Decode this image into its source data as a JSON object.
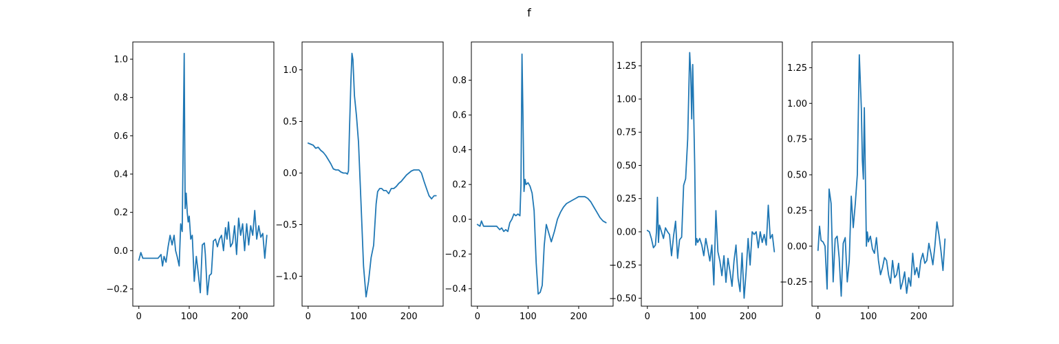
{
  "figure": {
    "suptitle": "f",
    "line_color": "#1f77b4"
  },
  "chart_data": [
    {
      "type": "line",
      "xlim": [
        -12,
        268
      ],
      "ylim": [
        -0.29,
        1.09
      ],
      "xticks": [
        0,
        100,
        200
      ],
      "yticks": [
        -0.2,
        0.0,
        0.2,
        0.4,
        0.6,
        0.8,
        1.0
      ],
      "x": [
        0,
        4,
        8,
        14,
        22,
        30,
        38,
        44,
        47,
        50,
        54,
        58,
        62,
        66,
        70,
        73,
        76,
        80,
        83,
        86,
        88,
        90,
        91,
        92,
        94,
        96,
        98,
        100,
        103,
        106,
        110,
        114,
        118,
        122,
        126,
        130,
        132,
        136,
        140,
        144,
        148,
        152,
        156,
        160,
        164,
        168,
        172,
        175,
        178,
        182,
        186,
        190,
        194,
        198,
        202,
        206,
        210,
        214,
        218,
        222,
        226,
        230,
        234,
        238,
        242,
        246,
        250,
        254
      ],
      "y": [
        -0.05,
        -0.01,
        -0.04,
        -0.04,
        -0.04,
        -0.04,
        -0.04,
        -0.02,
        -0.08,
        -0.03,
        -0.06,
        0.02,
        0.08,
        0.03,
        0.08,
        0.0,
        -0.03,
        -0.08,
        0.14,
        0.1,
        0.55,
        1.03,
        0.6,
        0.22,
        0.3,
        0.2,
        0.15,
        0.18,
        0.06,
        0.08,
        -0.16,
        -0.03,
        -0.12,
        -0.22,
        0.03,
        0.04,
        -0.02,
        -0.23,
        -0.13,
        -0.12,
        0.05,
        0.06,
        0.02,
        0.06,
        0.08,
        0.0,
        0.12,
        0.06,
        0.15,
        0.02,
        0.04,
        0.13,
        -0.02,
        0.17,
        0.08,
        0.14,
        0.0,
        0.14,
        0.03,
        0.13,
        0.08,
        0.21,
        0.06,
        0.13,
        0.07,
        0.09,
        -0.04,
        0.08
      ]
    },
    {
      "type": "line",
      "xlim": [
        -12,
        268
      ],
      "ylim": [
        -1.29,
        1.27
      ],
      "xticks": [
        0,
        100,
        200
      ],
      "yticks": [
        -1.0,
        -0.5,
        0.0,
        0.5,
        1.0
      ],
      "x": [
        0,
        5,
        10,
        15,
        20,
        25,
        30,
        35,
        40,
        45,
        50,
        55,
        60,
        65,
        70,
        75,
        78,
        80,
        82,
        85,
        87,
        89,
        92,
        96,
        100,
        105,
        110,
        115,
        120,
        125,
        130,
        135,
        138,
        142,
        146,
        150,
        155,
        160,
        165,
        170,
        175,
        180,
        185,
        190,
        195,
        200,
        205,
        210,
        215,
        220,
        225,
        230,
        235,
        240,
        245,
        250,
        254
      ],
      "y": [
        0.29,
        0.28,
        0.27,
        0.24,
        0.25,
        0.22,
        0.2,
        0.17,
        0.13,
        0.09,
        0.04,
        0.03,
        0.03,
        0.01,
        0.0,
        0.0,
        -0.01,
        0.02,
        0.4,
        0.9,
        1.16,
        1.1,
        0.75,
        0.55,
        0.3,
        -0.3,
        -0.9,
        -1.2,
        -1.05,
        -0.82,
        -0.7,
        -0.3,
        -0.18,
        -0.15,
        -0.15,
        -0.17,
        -0.17,
        -0.2,
        -0.15,
        -0.15,
        -0.13,
        -0.1,
        -0.08,
        -0.05,
        -0.02,
        0.0,
        0.02,
        0.03,
        0.03,
        0.03,
        0.0,
        -0.08,
        -0.15,
        -0.22,
        -0.25,
        -0.22,
        -0.22
      ]
    },
    {
      "type": "line",
      "xlim": [
        -12,
        268
      ],
      "ylim": [
        -0.5,
        1.02
      ],
      "xticks": [
        0,
        100,
        200
      ],
      "yticks": [
        -0.4,
        -0.2,
        0.0,
        0.2,
        0.4,
        0.6,
        0.8
      ],
      "x": [
        0,
        5,
        8,
        12,
        16,
        22,
        30,
        38,
        44,
        48,
        52,
        56,
        60,
        64,
        68,
        72,
        76,
        80,
        84,
        86,
        88,
        90,
        92,
        94,
        96,
        100,
        104,
        108,
        112,
        116,
        120,
        124,
        128,
        132,
        136,
        140,
        146,
        152,
        158,
        164,
        170,
        176,
        182,
        188,
        194,
        200,
        206,
        212,
        218,
        224,
        230,
        236,
        242,
        248,
        254
      ],
      "y": [
        -0.03,
        -0.04,
        -0.01,
        -0.04,
        -0.04,
        -0.04,
        -0.04,
        -0.04,
        -0.06,
        -0.05,
        -0.07,
        -0.06,
        -0.07,
        -0.02,
        0.0,
        0.03,
        0.02,
        0.03,
        0.02,
        0.2,
        0.95,
        0.6,
        0.16,
        0.23,
        0.2,
        0.21,
        0.19,
        0.15,
        0.05,
        -0.25,
        -0.43,
        -0.42,
        -0.38,
        -0.15,
        -0.03,
        -0.07,
        -0.13,
        -0.07,
        0.0,
        0.04,
        0.07,
        0.09,
        0.1,
        0.11,
        0.12,
        0.13,
        0.13,
        0.13,
        0.12,
        0.1,
        0.07,
        0.04,
        0.01,
        -0.01,
        -0.02
      ]
    },
    {
      "type": "line",
      "xlim": [
        -12,
        268
      ],
      "ylim": [
        -0.56,
        1.43
      ],
      "xticks": [
        0,
        100,
        200
      ],
      "yticks": [
        -0.5,
        -0.25,
        0.0,
        0.25,
        0.5,
        0.75,
        1.0,
        1.25
      ],
      "x": [
        0,
        4,
        8,
        12,
        16,
        18,
        20,
        22,
        24,
        28,
        32,
        36,
        40,
        44,
        48,
        52,
        56,
        60,
        64,
        68,
        72,
        76,
        80,
        84,
        86,
        88,
        90,
        92,
        94,
        96,
        98,
        100,
        104,
        108,
        112,
        116,
        120,
        124,
        128,
        132,
        136,
        140,
        144,
        148,
        152,
        156,
        160,
        164,
        168,
        172,
        176,
        180,
        184,
        188,
        192,
        196,
        200,
        204,
        208,
        212,
        216,
        220,
        224,
        228,
        232,
        236,
        240,
        244,
        248,
        252
      ],
      "y": [
        0.01,
        0.0,
        -0.05,
        -0.12,
        -0.1,
        0.0,
        0.26,
        -0.08,
        0.05,
        0.0,
        -0.05,
        0.03,
        0.0,
        -0.02,
        -0.18,
        -0.03,
        0.08,
        -0.2,
        -0.06,
        -0.04,
        0.35,
        0.4,
        0.7,
        1.35,
        1.2,
        0.85,
        1.26,
        0.9,
        0.5,
        -0.1,
        -0.05,
        -0.08,
        -0.05,
        -0.1,
        -0.18,
        -0.05,
        -0.13,
        -0.22,
        -0.1,
        -0.4,
        0.16,
        -0.15,
        -0.22,
        -0.33,
        -0.18,
        -0.38,
        -0.2,
        -0.3,
        -0.41,
        -0.22,
        -0.1,
        -0.35,
        -0.45,
        -0.16,
        -0.5,
        -0.3,
        -0.05,
        -0.25,
        0.0,
        -0.02,
        0.0,
        -0.12,
        0.0,
        -0.08,
        -0.02,
        -0.1,
        0.2,
        -0.05,
        -0.02,
        -0.15
      ]
    },
    {
      "type": "line",
      "xlim": [
        -12,
        268
      ],
      "ylim": [
        -0.42,
        1.43
      ],
      "xticks": [
        0,
        100,
        200
      ],
      "yticks": [
        -0.25,
        0.0,
        0.25,
        0.5,
        0.75,
        1.0,
        1.25
      ],
      "x": [
        0,
        3,
        6,
        10,
        14,
        18,
        22,
        26,
        30,
        34,
        38,
        42,
        46,
        50,
        54,
        58,
        62,
        66,
        70,
        74,
        78,
        82,
        86,
        88,
        90,
        92,
        94,
        96,
        98,
        100,
        104,
        108,
        112,
        116,
        120,
        124,
        128,
        132,
        136,
        140,
        144,
        148,
        152,
        156,
        160,
        164,
        168,
        172,
        176,
        180,
        184,
        188,
        192,
        196,
        200,
        204,
        208,
        212,
        216,
        220,
        224,
        228,
        232,
        236,
        240,
        244,
        248,
        252
      ],
      "y": [
        -0.03,
        0.14,
        0.04,
        0.03,
        0.0,
        -0.3,
        0.4,
        0.3,
        -0.25,
        0.05,
        0.07,
        -0.08,
        -0.35,
        0.02,
        0.06,
        -0.25,
        -0.1,
        0.35,
        0.13,
        0.3,
        0.5,
        1.34,
        0.96,
        0.6,
        0.47,
        0.97,
        0.5,
        0.0,
        0.1,
        0.03,
        0.07,
        -0.02,
        -0.05,
        0.06,
        -0.1,
        -0.2,
        -0.15,
        -0.08,
        -0.1,
        -0.2,
        -0.26,
        -0.1,
        -0.22,
        -0.2,
        -0.12,
        -0.3,
        -0.25,
        -0.18,
        -0.33,
        -0.22,
        -0.28,
        -0.05,
        -0.2,
        -0.15,
        -0.22,
        -0.1,
        -0.05,
        -0.12,
        -0.1,
        0.02,
        -0.05,
        -0.13,
        0.0,
        0.17,
        0.08,
        -0.03,
        -0.17,
        0.05
      ]
    }
  ]
}
